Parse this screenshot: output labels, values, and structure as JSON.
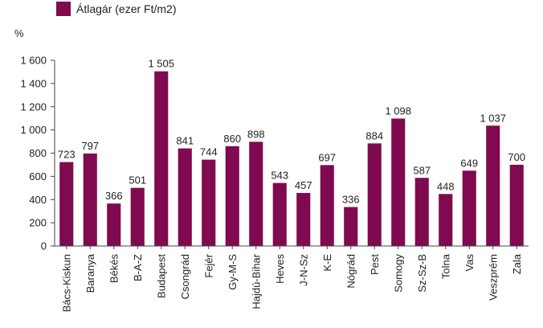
{
  "chart_data": {
    "type": "bar",
    "title": "",
    "xlabel": "",
    "ylabel": "%",
    "ylim": [
      0,
      1600
    ],
    "yticks": [
      0,
      200,
      400,
      600,
      800,
      1000,
      1200,
      1400,
      1600
    ],
    "ytick_labels": [
      "0",
      "200",
      "400",
      "600",
      "800",
      "1 000",
      "1 200",
      "1 400",
      "1 600"
    ],
    "grid": false,
    "legend_position": "top-left",
    "categories": [
      "Bács-Kiskun",
      "Baranya",
      "Békés",
      "B-A-Z",
      "Budapest",
      "Csongrád",
      "Fejér",
      "Gy-M-S",
      "Hajdú-Bihar",
      "Heves",
      "J-N-Sz",
      "K-E",
      "Nógrád",
      "Pest",
      "Somogy",
      "Sz-Sz-B",
      "Tolna",
      "Vas",
      "Veszprém",
      "Zala"
    ],
    "series": [
      {
        "name": "Átlagár (ezer Ft/m2)",
        "color": "#7f0a4f",
        "values": [
          723,
          797,
          366,
          501,
          1505,
          841,
          744,
          860,
          898,
          543,
          457,
          697,
          336,
          884,
          1098,
          587,
          448,
          649,
          1037,
          700
        ],
        "value_labels": [
          "723",
          "797",
          "366",
          "501",
          "1 505",
          "841",
          "744",
          "860",
          "898",
          "543",
          "457",
          "697",
          "336",
          "884",
          "1 098",
          "587",
          "448",
          "649",
          "1 037",
          "700"
        ]
      }
    ]
  }
}
